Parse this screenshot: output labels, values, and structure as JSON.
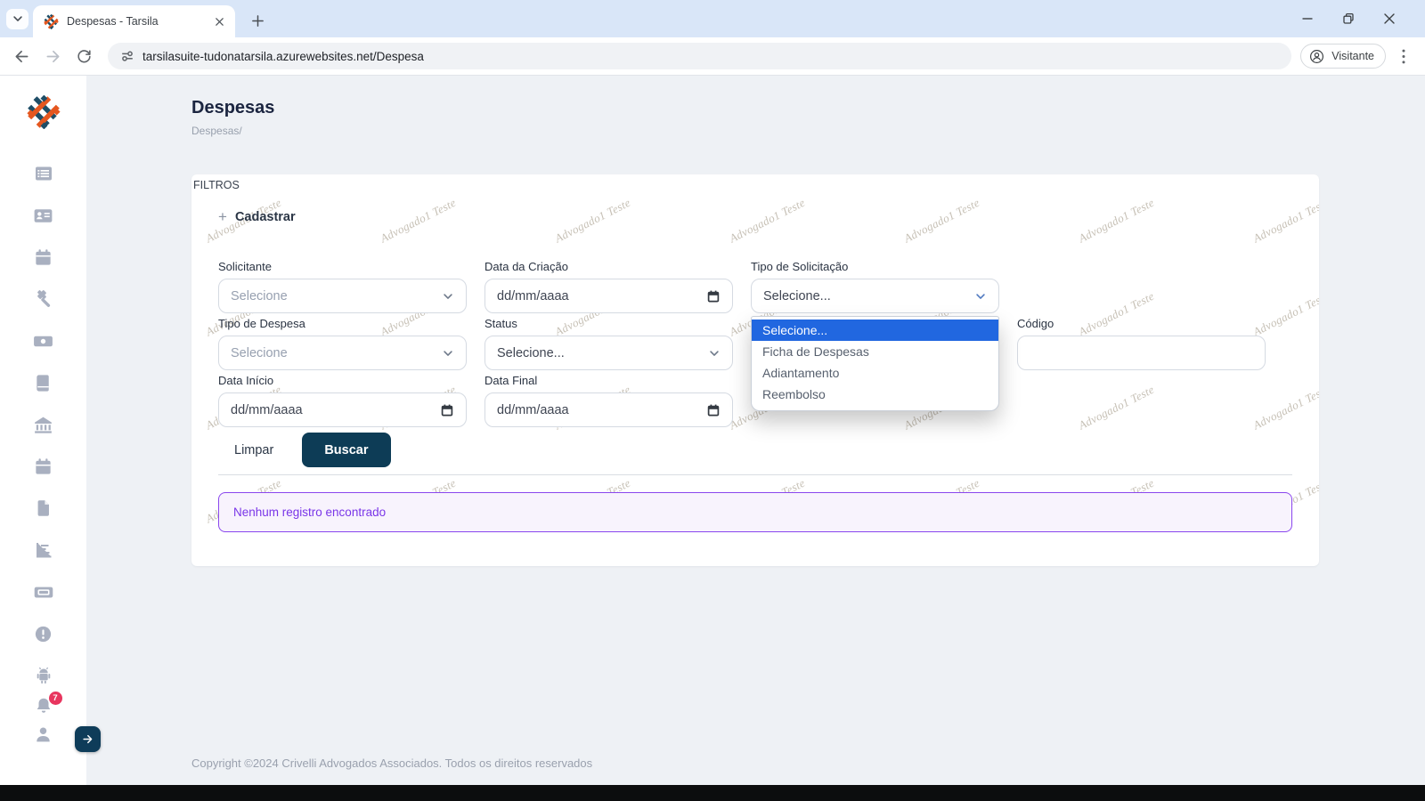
{
  "browser": {
    "tab_title": "Despesas - Tarsila",
    "url": "tarsilasuite-tudonatarsila.azurewebsites.net/Despesa",
    "profile_label": "Visitante"
  },
  "page": {
    "title": "Despesas",
    "breadcrumb": "Despesas/",
    "footer": "Copyright ©2024 Crivelli Advogados Associados. Todos os direitos reservados"
  },
  "sidebar": {
    "notification_count": "7",
    "icon_names": [
      "app-logo",
      "list-icon",
      "id-card-icon",
      "calendar-icon",
      "gavel-icon",
      "banknote-icon",
      "book-icon",
      "bank-icon",
      "calendar-icon",
      "document-icon",
      "bar-chart-icon",
      "ticket-icon",
      "alert-circle-icon",
      "android-icon",
      "bell-icon",
      "person-icon",
      "expand-arrow-icon"
    ]
  },
  "icons": {
    "plus_glyph": "+",
    "browser": [
      "chevron-down-icon",
      "logo-favicon",
      "tab-close-icon",
      "new-tab-icon",
      "minimize-icon",
      "restore-icon",
      "window-close-icon",
      "back-icon",
      "forward-icon",
      "reload-icon",
      "tune-icon",
      "profile-icon",
      "kebab-menu-icon"
    ],
    "fields": [
      "chevron-down-icon",
      "calendar-date-icon"
    ]
  },
  "filters": {
    "legend": "FILTROS",
    "add_button": "Cadastrar",
    "clear_button": "Limpar",
    "search_button": "Buscar",
    "fields": {
      "solicitante": {
        "label": "Solicitante",
        "value": "Selecione"
      },
      "data_criacao": {
        "label": "Data da Criação",
        "value": "dd/mm/aaaa"
      },
      "tipo_solicitacao": {
        "label": "Tipo de Solicitação",
        "value": "Selecione...",
        "options": [
          "Selecione...",
          "Ficha de Despesas",
          "Adiantamento",
          "Reembolso"
        ],
        "selected_option": "Selecione..."
      },
      "tipo_despesa": {
        "label": "Tipo de Despesa",
        "value": "Selecione"
      },
      "status": {
        "label": "Status",
        "value": "Selecione..."
      },
      "codigo": {
        "label": "Código",
        "value": ""
      },
      "data_inicio": {
        "label": "Data Início",
        "value": "dd/mm/aaaa"
      },
      "data_final": {
        "label": "Data Final",
        "value": "dd/mm/aaaa"
      }
    }
  },
  "alert": {
    "message": "Nenhum registro encontrado"
  },
  "watermark": {
    "text": "Advogado1 Teste"
  },
  "colors": {
    "primary_button": "#0d3c56",
    "logo_orange": "#e5571f",
    "logo_navy": "#1f4e67",
    "alert_border": "#8a46ee",
    "alert_text": "#7a36e8",
    "alert_bg": "#f8f3fd",
    "dropdown_highlight": "#2167e0",
    "notification_badge": "#e8355e",
    "tabstrip_bg": "#d9e6f8"
  }
}
